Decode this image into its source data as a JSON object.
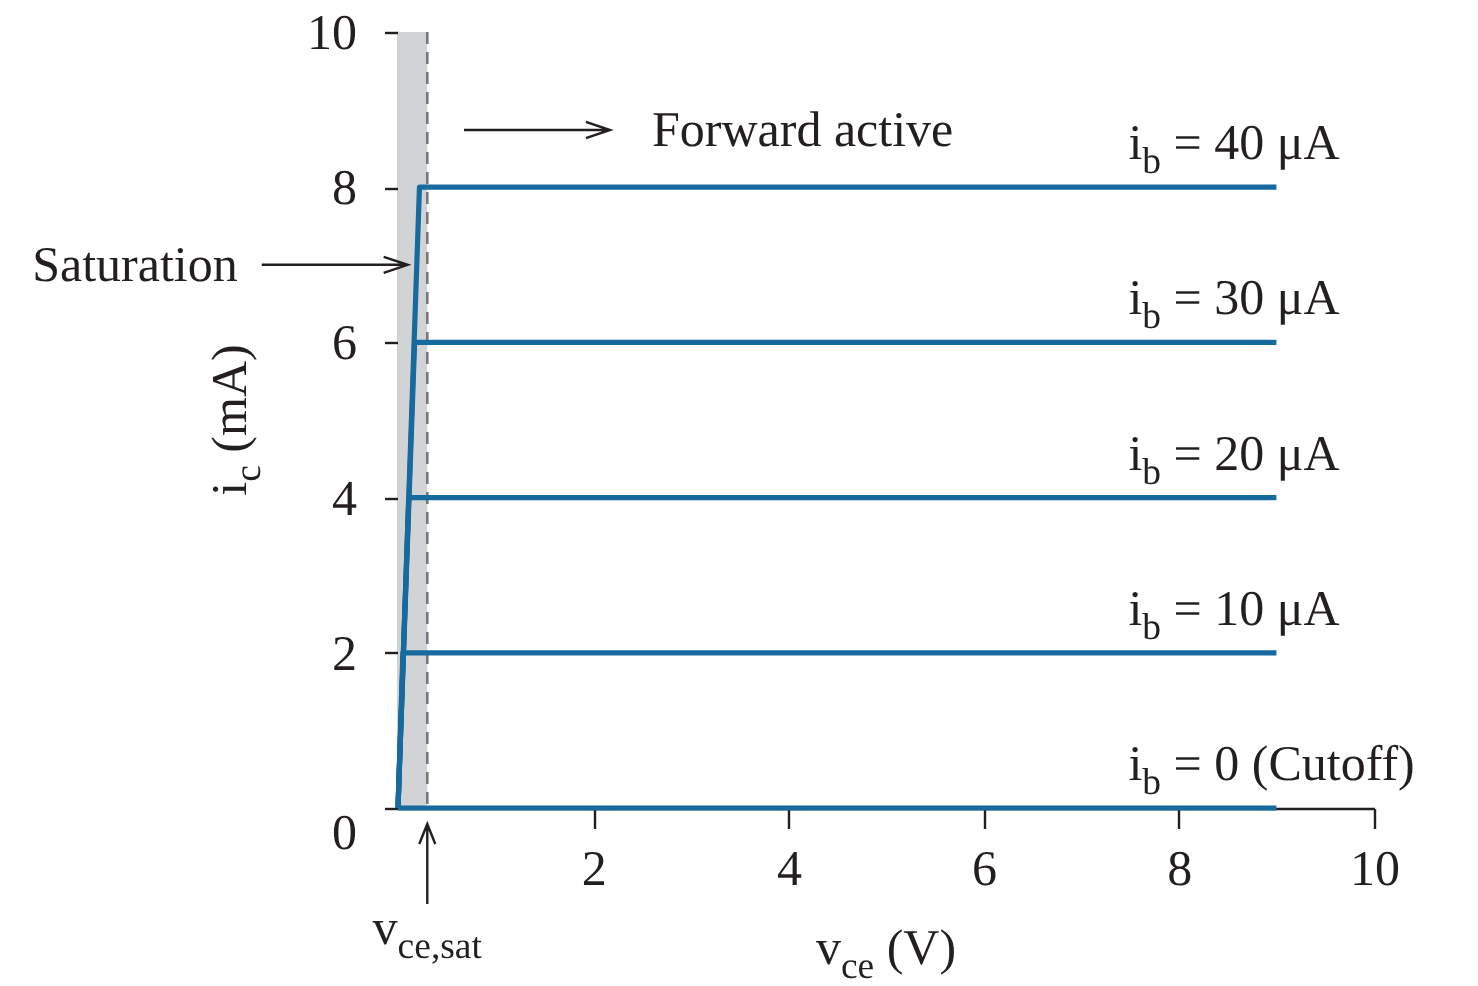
{
  "chart_data": {
    "type": "line",
    "xlabel": "v$_{ce}$ (V)",
    "ylabel": "i$_{c}$ (mA)",
    "xlim": [
      0,
      10
    ],
    "ylim": [
      0,
      10
    ],
    "xticks": [
      2,
      4,
      6,
      8,
      10
    ],
    "yticks": [
      0,
      2,
      4,
      6,
      8,
      10
    ],
    "grid": false,
    "series": [
      {
        "name": "i$_{b}$ = 40 μA",
        "color": "#166a9e",
        "x": [
          0,
          0.22,
          9
        ],
        "values": [
          0,
          8,
          8
        ]
      },
      {
        "name": "i$_{b}$ = 30 μA",
        "color": "#166a9e",
        "x": [
          0,
          0.17,
          9
        ],
        "values": [
          0,
          6,
          6
        ]
      },
      {
        "name": "i$_{b}$ = 20 μA",
        "color": "#166a9e",
        "x": [
          0,
          0.11,
          9
        ],
        "values": [
          0,
          4,
          4
        ]
      },
      {
        "name": "i$_{b}$ = 10 μA",
        "color": "#166a9e",
        "x": [
          0,
          0.05,
          9
        ],
        "values": [
          0,
          2,
          2
        ]
      },
      {
        "name": "i$_{b}$ = 0 (Cutoff)",
        "color": "#166a9e",
        "x": [
          0,
          9
        ],
        "values": [
          0,
          0
        ]
      }
    ],
    "bands": [
      {
        "axis": "x",
        "from": 0,
        "to": 0.3,
        "color": "#d1d3d4"
      }
    ],
    "ref_lines": [
      {
        "axis": "x",
        "value": 0.3,
        "label": "v$_{ce,sat}$",
        "color": "#77787b",
        "line_style": "dashed"
      }
    ],
    "annotations": [
      "Forward active",
      {
        "text": "Saturation",
        "x": 0.1,
        "y": 7
      }
    ]
  }
}
